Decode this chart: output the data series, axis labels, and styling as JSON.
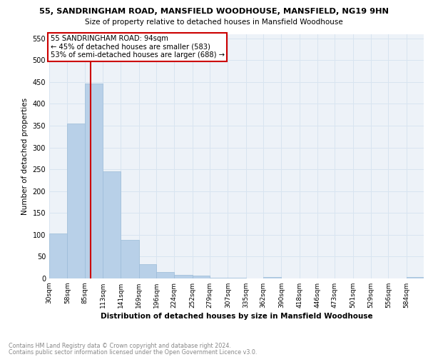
{
  "title": "55, SANDRINGHAM ROAD, MANSFIELD WOODHOUSE, MANSFIELD, NG19 9HN",
  "subtitle": "Size of property relative to detached houses in Mansfield Woodhouse",
  "xlabel": "Distribution of detached houses by size in Mansfield Woodhouse",
  "ylabel": "Number of detached properties",
  "footnote1": "Contains HM Land Registry data © Crown copyright and database right 2024.",
  "footnote2": "Contains public sector information licensed under the Open Government Licence v3.0.",
  "annotation_line1": "55 SANDRINGHAM ROAD: 94sqm",
  "annotation_line2": "← 45% of detached houses are smaller (583)",
  "annotation_line3": "53% of semi-detached houses are larger (688) →",
  "bar_left_edges": [
    30,
    58,
    85,
    113,
    141,
    169,
    196,
    224,
    252,
    279,
    307,
    335,
    362,
    390,
    418,
    446,
    473,
    501,
    529,
    556,
    584
  ],
  "bar_heights": [
    103,
    355,
    447,
    245,
    88,
    33,
    15,
    8,
    7,
    2,
    1,
    0,
    4,
    0,
    0,
    0,
    0,
    0,
    0,
    0,
    4
  ],
  "tick_labels": [
    "30sqm",
    "58sqm",
    "85sqm",
    "113sqm",
    "141sqm",
    "169sqm",
    "196sqm",
    "224sqm",
    "252sqm",
    "279sqm",
    "307sqm",
    "335sqm",
    "362sqm",
    "390sqm",
    "418sqm",
    "446sqm",
    "473sqm",
    "501sqm",
    "529sqm",
    "556sqm",
    "584sqm"
  ],
  "bar_color": "#b8d0e8",
  "bar_edgecolor": "#9bbbd8",
  "vline_color": "#cc0000",
  "vline_x": 94,
  "annotation_box_edgecolor": "#cc0000",
  "annotation_box_facecolor": "#ffffff",
  "grid_color": "#d8e4f0",
  "background_color": "#edf2f8",
  "ylim": [
    0,
    560
  ],
  "yticks": [
    0,
    50,
    100,
    150,
    200,
    250,
    300,
    350,
    400,
    450,
    500,
    550
  ],
  "xlim_left": 30,
  "xlim_right": 611
}
